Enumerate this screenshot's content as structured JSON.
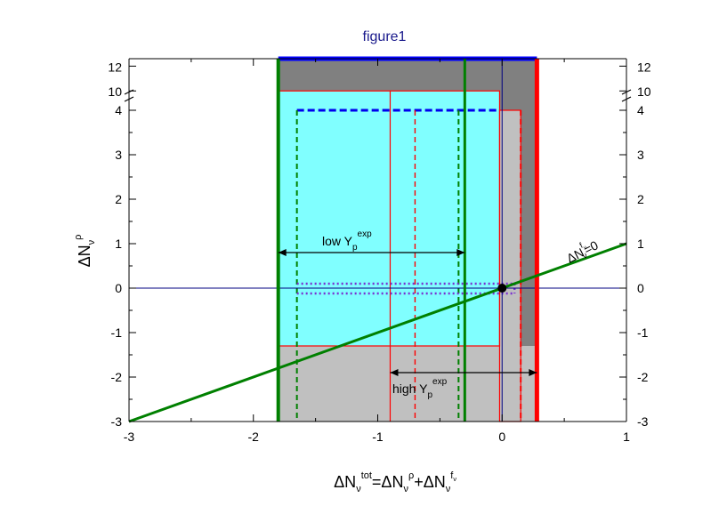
{
  "title": "figure1",
  "axes": {
    "xlabel": {
      "main": "ΔN",
      "sub": "ν",
      "sup": "tot",
      "eq": "=ΔN",
      "sub2": "ν",
      "sup2": "ρ",
      "plus": "+ΔN",
      "sub3": "ν",
      "sup3": "f",
      "sup3sub": "ν"
    },
    "ylabel": {
      "main": "ΔN",
      "sub": "ν",
      "sup": "ρ"
    }
  },
  "annotations": {
    "low": {
      "main": "low Y",
      "sub": "p",
      "sup": "exp"
    },
    "high": {
      "main": "high Y",
      "sub": "p",
      "sup": "exp"
    },
    "line": {
      "main": "ΔN",
      "sup": "f",
      "supsub": "ν",
      "sub": "ν",
      "tail": "=0"
    }
  },
  "chart_data": {
    "type": "region-diagram",
    "title": "figure1",
    "xlim": [
      -3,
      1
    ],
    "ylim_lower_segment": [
      -3,
      4.4
    ],
    "ylim_upper_segment": [
      9.3,
      12.6
    ],
    "y_axis_break_between": [
      4.4,
      9.3
    ],
    "x_ticks": [
      "-3",
      "-2",
      "-1",
      "0",
      "1"
    ],
    "y_ticks": [
      "-3",
      "-2",
      "-1",
      "0",
      "1",
      "2",
      "3",
      "4",
      "10",
      "12"
    ],
    "regions": [
      {
        "name": "dark-gray",
        "color": "#808080",
        "x": [
          -1.8,
          0.28
        ],
        "y": [
          -3,
          12.6
        ]
      },
      {
        "name": "light-gray",
        "color": "#c0c0c0",
        "x": [
          -1.8,
          0.28
        ],
        "y": [
          -3,
          -1.3
        ]
      },
      {
        "name": "light-gray-2",
        "color": "#c0c0c0",
        "x": [
          -0.02,
          0.15
        ],
        "y": [
          -3,
          4
        ]
      },
      {
        "name": "cyan",
        "color": "#80ffff",
        "x": [
          -1.8,
          -0.02
        ],
        "y": [
          -1.3,
          10
        ]
      }
    ],
    "lines": [
      {
        "name": "green-diagonal",
        "color": "#008000",
        "points": [
          [
            -3,
            -3
          ],
          [
            1,
            1
          ]
        ]
      },
      {
        "name": "zero-line",
        "color": "#000080",
        "y": 0
      },
      {
        "name": "x-zero-line",
        "color": "#000080",
        "x": 0
      },
      {
        "name": "green-left-thick",
        "color": "#008000",
        "x": -1.8
      },
      {
        "name": "green-right",
        "color": "#008000",
        "x": -0.3
      },
      {
        "name": "red-thick",
        "color": "#ff0000",
        "x": 0.28
      },
      {
        "name": "red-thin",
        "color": "#ff0000",
        "x": -0.9
      },
      {
        "name": "blue-top",
        "color": "#0000ff",
        "y": 12.6
      }
    ],
    "intervals": [
      {
        "name": "low Yp exp",
        "x": [
          -1.8,
          -0.3
        ],
        "y": 0.8
      },
      {
        "name": "high Yp exp",
        "x": [
          -0.9,
          0.28
        ],
        "y": -1.9
      }
    ],
    "point": {
      "x": 0,
      "y": 0
    }
  }
}
